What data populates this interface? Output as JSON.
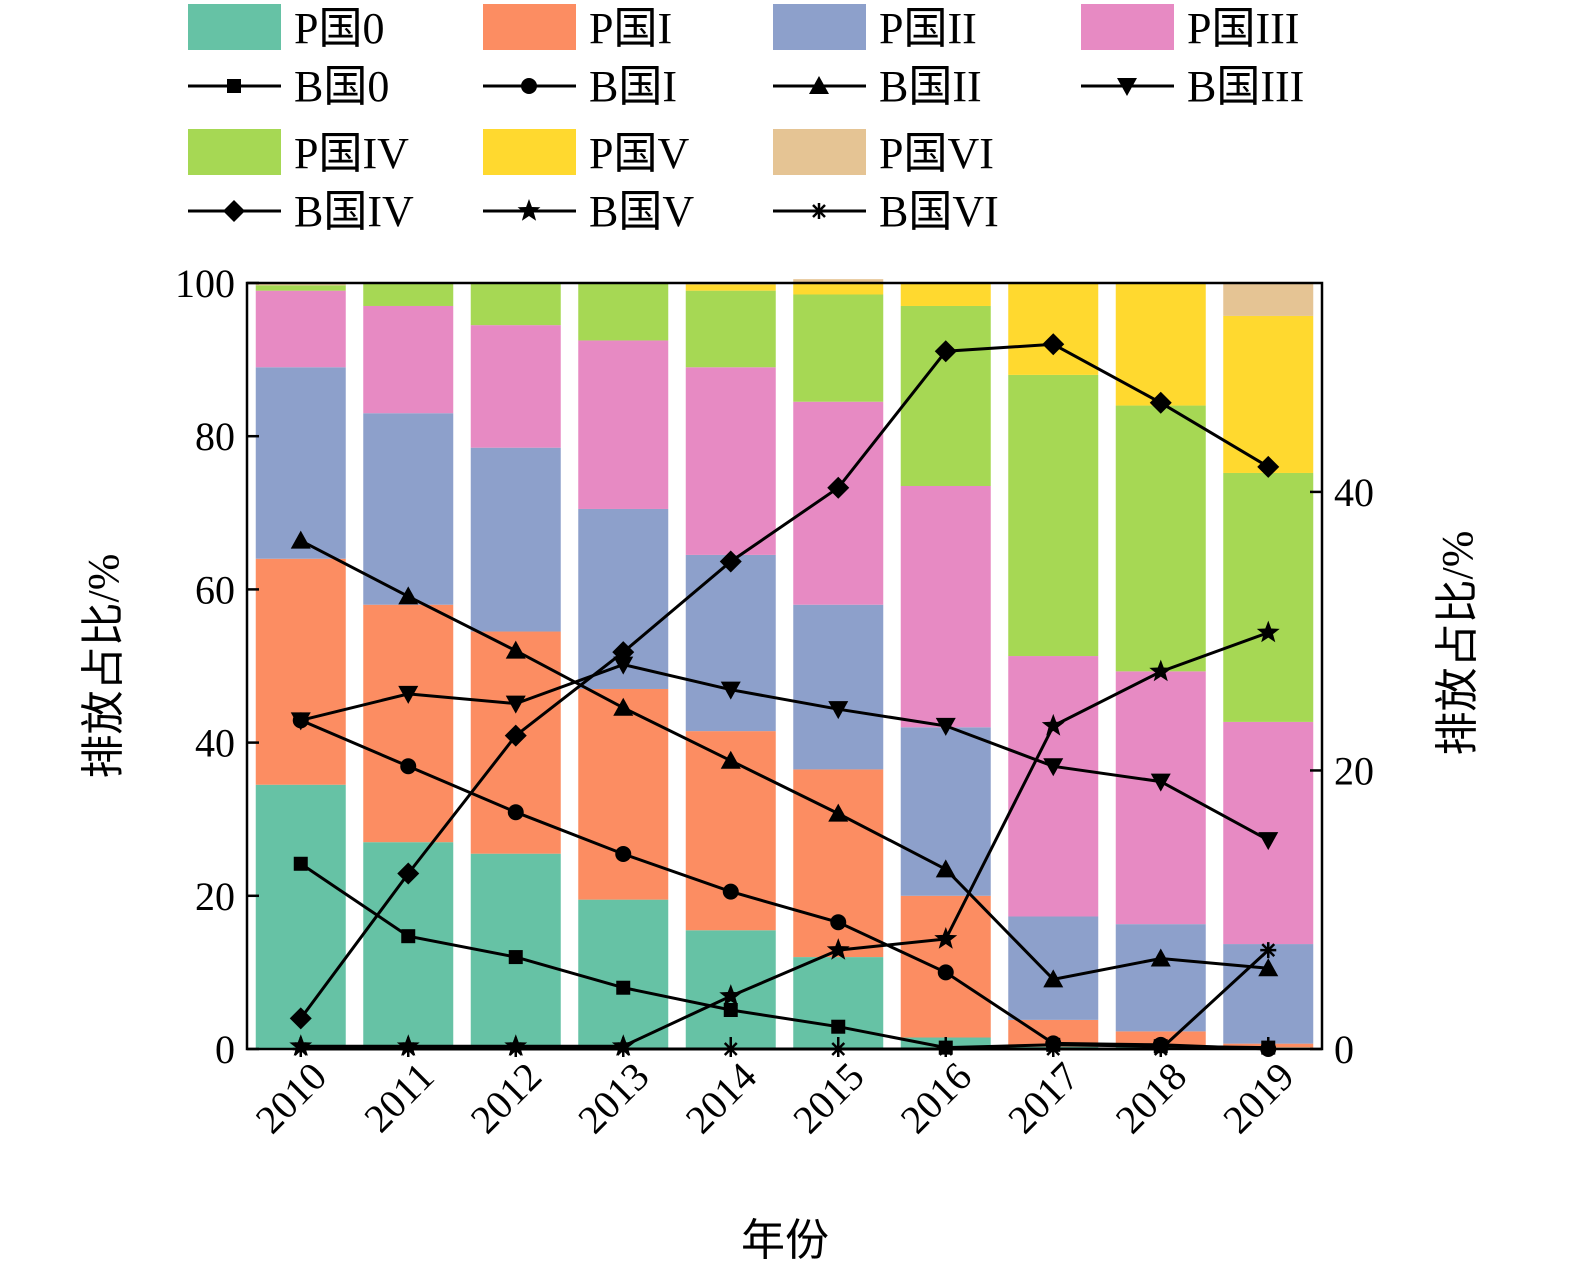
{
  "chart_data": {
    "type": "bar",
    "categories": [
      "2010",
      "2011",
      "2012",
      "2013",
      "2014",
      "2015",
      "2016",
      "2017",
      "2018",
      "2019"
    ],
    "xlabel": "年份",
    "ylabel": "排放占比/%",
    "ylabel_right": "排放占比/%",
    "ylim": [
      0,
      100
    ],
    "ylim_right": [
      0,
      55
    ],
    "yticks": [
      0,
      20,
      40,
      60,
      80,
      100
    ],
    "yticks_right": [
      0,
      20,
      40
    ],
    "legend_position": "top",
    "bar_series": [
      {
        "name": "P国0",
        "color": "#66c2a5",
        "values": [
          34.5,
          27,
          25.5,
          19.5,
          15.5,
          12,
          1.5,
          0.3,
          0.3,
          0.2
        ]
      },
      {
        "name": "P国I",
        "color": "#fc8d62",
        "values": [
          29.5,
          31,
          29,
          27.5,
          26,
          24.5,
          18.5,
          3.5,
          2,
          0.5
        ]
      },
      {
        "name": "P国II",
        "color": "#8da0cb",
        "values": [
          25,
          25,
          24,
          23.5,
          23,
          21.5,
          22,
          13.5,
          14,
          13
        ]
      },
      {
        "name": "P国III",
        "color": "#e78ac3",
        "values": [
          10,
          14,
          16,
          22,
          24.5,
          26.5,
          31.5,
          34,
          33,
          29
        ]
      },
      {
        "name": "P国IV",
        "color": "#a6d854",
        "values": [
          0.7,
          3,
          5.5,
          7.5,
          10,
          14,
          23.5,
          36.7,
          34.7,
          32.5
        ]
      },
      {
        "name": "P国V",
        "color": "#ffd92f",
        "values": [
          0,
          0,
          0,
          0,
          0.8,
          1.5,
          3,
          12,
          16,
          20.5
        ]
      },
      {
        "name": "P国VI",
        "color": "#e5c494",
        "values": [
          0.3,
          0,
          0,
          0,
          0.2,
          0.5,
          0,
          0,
          0,
          4.3
        ]
      }
    ],
    "line_series": [
      {
        "name": "B国0",
        "marker": "square",
        "values": [
          13.3,
          8.1,
          6.6,
          4.4,
          2.8,
          1.6,
          0.1,
          0.3,
          0.2,
          0.1
        ]
      },
      {
        "name": "B国I",
        "marker": "circle",
        "values": [
          23.6,
          20.3,
          17,
          14,
          11.3,
          9.1,
          5.5,
          0.4,
          0.3,
          0
        ]
      },
      {
        "name": "B国II",
        "marker": "triangle-up",
        "values": [
          36.5,
          32.5,
          28.6,
          24.5,
          20.7,
          16.9,
          12.9,
          5,
          6.5,
          5.8
        ]
      },
      {
        "name": "B国III",
        "marker": "triangle-down",
        "values": [
          23.6,
          25.5,
          24.8,
          27.6,
          25.8,
          24.4,
          23.2,
          20.3,
          19.2,
          15
        ]
      },
      {
        "name": "B国IV",
        "marker": "diamond",
        "values": [
          2.2,
          12.6,
          22.5,
          28.5,
          35,
          40.3,
          50.1,
          50.6,
          46.4,
          41.8
        ]
      },
      {
        "name": "B国V",
        "marker": "star",
        "values": [
          0.2,
          0.2,
          0.2,
          0.2,
          3.8,
          7.1,
          7.9,
          23.2,
          27.1,
          29.9
        ]
      },
      {
        "name": "B国VI",
        "marker": "asterisk",
        "values": [
          0,
          0,
          0,
          0,
          0,
          0,
          0,
          0,
          0,
          7.1
        ]
      }
    ]
  }
}
